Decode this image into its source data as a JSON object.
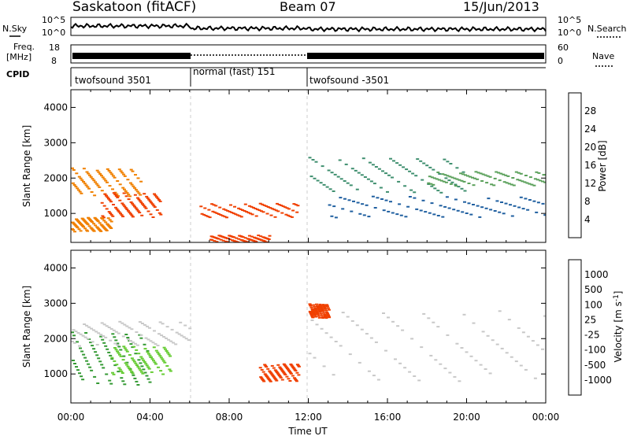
{
  "header": {
    "radar": "Saskatoon (fitACF)",
    "beam": "Beam 07",
    "date": "15/Jun/2013"
  },
  "strips": {
    "nsky_label": "N.Sky",
    "nsky_ticks": [
      "10^5",
      "10^0"
    ],
    "nsearch_label": "N.Search",
    "nsearch_ticks": [
      "10^5",
      "10^0"
    ],
    "freq_label_top": "Freq.",
    "freq_label_bottom": "[MHz]",
    "freq_ticks": [
      "18",
      "8"
    ],
    "nave_label": "Nave",
    "nave_ticks": [
      "60",
      "0"
    ],
    "cpid_label": "CPID",
    "cpid_segments": [
      {
        "label": "twofsound 3501",
        "start_h": 0,
        "end_h": 6
      },
      {
        "label": "normal (fast) 151",
        "start_h": 6,
        "end_h": 12
      },
      {
        "label": "twofsound -3501",
        "start_h": 12,
        "end_h": 24
      }
    ]
  },
  "x_axis": {
    "label": "Time UT",
    "ticks": [
      "00:00",
      "04:00",
      "08:00",
      "12:00",
      "16:00",
      "20:00",
      "00:00"
    ]
  },
  "colors": {
    "power": [
      "#0000ff",
      "#1a3fa8",
      "#1f5fa0",
      "#3f8f6f",
      "#5aa05a",
      "#e8c000",
      "#f08000",
      "#f04000",
      "#ff0000"
    ],
    "velocity": [
      "#ff0000",
      "#f04000",
      "#f08000",
      "#c8c8c8",
      "#c8c8c8",
      "#66cc33",
      "#339933",
      "#1f5fa0",
      "#2020a0"
    ]
  },
  "chart_data": [
    {
      "type": "heatmap",
      "ylabel": "Slant Range [km]",
      "xlabel": "",
      "xlim": [
        0,
        24
      ],
      "ylim": [
        180,
        4500
      ],
      "yticks": [
        "1000",
        "2000",
        "3000",
        "4000"
      ],
      "colorbar": {
        "label": "Power [dB]",
        "range": [
          0,
          32
        ],
        "ticks": [
          "4",
          "8",
          "12",
          "16",
          "20",
          "24",
          "28"
        ]
      },
      "regions": [
        {
          "t": [
            0,
            3.5
          ],
          "r": [
            1500,
            2300
          ],
          "value": 22
        },
        {
          "t": [
            1.5,
            4.5
          ],
          "r": [
            900,
            1600
          ],
          "value": 26
        },
        {
          "t": [
            0,
            2
          ],
          "r": [
            500,
            900
          ],
          "value": 24
        },
        {
          "t": [
            6.5,
            11.5
          ],
          "r": [
            900,
            1300
          ],
          "value": 26
        },
        {
          "t": [
            7,
            10
          ],
          "r": [
            200,
            400
          ],
          "value": 28
        },
        {
          "t": [
            12,
            20
          ],
          "r": [
            1600,
            2600
          ],
          "value": 14
        },
        {
          "t": [
            13,
            24
          ],
          "r": [
            900,
            1500
          ],
          "value": 10
        },
        {
          "t": [
            18,
            24
          ],
          "r": [
            1800,
            2200
          ],
          "value": 16
        }
      ]
    },
    {
      "type": "heatmap",
      "ylabel": "Slant Range [km]",
      "xlabel": "Time UT",
      "xlim": [
        0,
        24
      ],
      "ylim": [
        180,
        4500
      ],
      "yticks": [
        "1000",
        "2000",
        "3000",
        "4000"
      ],
      "colorbar": {
        "label": "Velocity [m s^-1]",
        "ticks": [
          "1000",
          "500",
          "100",
          "25",
          "-25",
          "-100",
          "-500",
          "-1000"
        ]
      },
      "regions": [
        {
          "t": [
            0,
            4
          ],
          "r": [
            700,
            2200
          ],
          "value": 100
        },
        {
          "t": [
            2,
            5
          ],
          "r": [
            1000,
            1800
          ],
          "value": 60
        },
        {
          "t": [
            0,
            6
          ],
          "r": [
            1800,
            2500
          ],
          "value": 10
        },
        {
          "t": [
            9.5,
            11.5
          ],
          "r": [
            800,
            1300
          ],
          "value": -300
        },
        {
          "t": [
            12,
            24
          ],
          "r": [
            800,
            2800
          ],
          "value": 0
        },
        {
          "t": [
            12,
            13
          ],
          "r": [
            2600,
            3000
          ],
          "value": -150
        }
      ]
    }
  ]
}
